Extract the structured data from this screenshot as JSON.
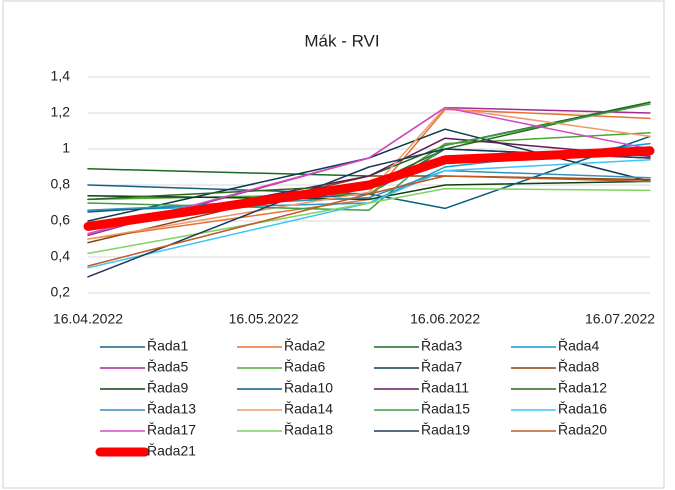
{
  "chart_data": {
    "type": "line",
    "title": "Mák - RVI",
    "x": [
      "2022-04-16",
      "2022-06-03",
      "2022-06-16",
      "2022-07-21"
    ],
    "xlim": [
      "2022-04-16",
      "2022-07-21"
    ],
    "xticks": [
      {
        "value": "2022-04-16",
        "label": "16.04.2022"
      },
      {
        "value": "2022-05-16",
        "label": "16.05.2022"
      },
      {
        "value": "2022-06-16",
        "label": "16.06.2022"
      },
      {
        "value": "2022-07-16",
        "label": "16.07.2022"
      }
    ],
    "ylim": [
      0.2,
      1.4
    ],
    "yticks": [
      {
        "value": 0.2,
        "label": "0,2"
      },
      {
        "value": 0.4,
        "label": "0,4"
      },
      {
        "value": 0.6,
        "label": "0,6"
      },
      {
        "value": 0.8,
        "label": "0,8"
      },
      1,
      {
        "value": 1.2,
        "label": "1,2"
      },
      {
        "value": 1.4,
        "label": "1,4"
      }
    ],
    "grid": true,
    "legend": "bottom",
    "series": [
      {
        "name": "Řada1",
        "color": "#156082",
        "values": [
          0.8,
          0.75,
          1.0,
          0.95
        ]
      },
      {
        "name": "Řada2",
        "color": "#E97132",
        "values": [
          0.5,
          0.72,
          1.22,
          1.17
        ]
      },
      {
        "name": "Řada3",
        "color": "#196B24",
        "values": [
          0.89,
          0.85,
          1.02,
          1.26
        ]
      },
      {
        "name": "Řada4",
        "color": "#0F9ED5",
        "values": [
          0.66,
          0.7,
          0.9,
          1.03
        ]
      },
      {
        "name": "Řada5",
        "color": "#A02B93",
        "values": [
          0.52,
          0.95,
          1.23,
          1.2
        ]
      },
      {
        "name": "Řada6",
        "color": "#4EA72E",
        "values": [
          0.72,
          0.75,
          1.03,
          1.09
        ]
      },
      {
        "name": "Řada7",
        "color": "#0D3A4E",
        "values": [
          0.6,
          0.95,
          1.11,
          0.82
        ]
      },
      {
        "name": "Řada8",
        "color": "#8B4414",
        "values": [
          0.48,
          0.85,
          0.85,
          0.83
        ]
      },
      {
        "name": "Řada9",
        "color": "#0F4015",
        "values": [
          0.74,
          0.72,
          0.8,
          0.82
        ]
      },
      {
        "name": "Řada10",
        "color": "#095F80",
        "values": [
          0.65,
          0.75,
          0.67,
          1.07
        ]
      },
      {
        "name": "Řada11",
        "color": "#601A58",
        "values": [
          0.55,
          0.85,
          1.06,
          0.96
        ]
      },
      {
        "name": "Řada12",
        "color": "#2F641C",
        "values": [
          0.72,
          0.8,
          1.0,
          1.26
        ]
      },
      {
        "name": "Řada13",
        "color": "#3A8FB7",
        "values": [
          0.66,
          0.73,
          0.88,
          0.84
        ]
      },
      {
        "name": "Řada14",
        "color": "#F09A6B",
        "values": [
          0.5,
          0.76,
          1.23,
          1.07
        ]
      },
      {
        "name": "Řada15",
        "color": "#3C9E47",
        "values": [
          0.7,
          0.66,
          1.02,
          1.25
        ]
      },
      {
        "name": "Řada16",
        "color": "#3EC5F5",
        "values": [
          0.34,
          0.7,
          0.88,
          0.94
        ]
      },
      {
        "name": "Řada17",
        "color": "#D54AC4",
        "values": [
          0.53,
          0.95,
          1.23,
          1.0
        ]
      },
      {
        "name": "Řada18",
        "color": "#7FD35E",
        "values": [
          0.42,
          0.7,
          0.78,
          0.77
        ]
      },
      {
        "name": "Řada19",
        "color": "#1F3A5A",
        "values": [
          0.29,
          0.9,
          1.0,
          0.95
        ]
      },
      {
        "name": "Řada20",
        "color": "#BB5B24",
        "values": [
          0.35,
          0.75,
          0.85,
          0.82
        ]
      },
      {
        "name": "Řada21",
        "color": "#FF0000",
        "values": [
          0.57,
          0.8,
          0.94,
          0.99
        ]
      }
    ]
  }
}
